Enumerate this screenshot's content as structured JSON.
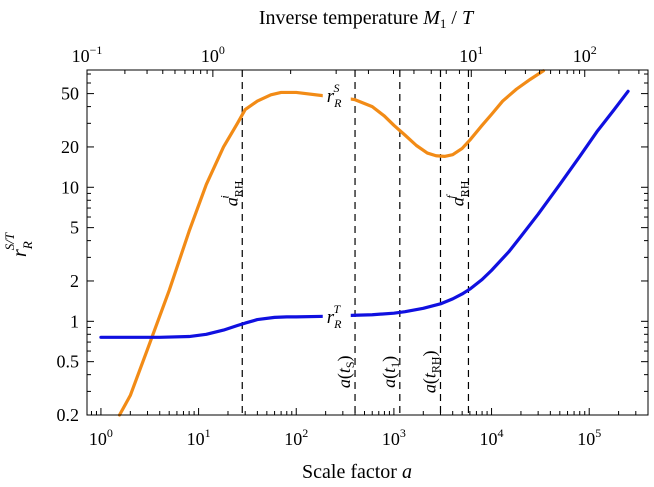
{
  "chart_data": {
    "type": "line",
    "title": "Inverse temperature M₁ / T",
    "xlabel": "Scale factor a",
    "ylabel": "r_R^{S/T}",
    "xscale": "log",
    "yscale": "log",
    "xlim": [
      0.72,
      400000
    ],
    "ylim": [
      0.2,
      75
    ],
    "x_ticks": [
      {
        "value": 1,
        "base": "10",
        "exp": "0"
      },
      {
        "value": 10,
        "base": "10",
        "exp": "1"
      },
      {
        "value": 100,
        "base": "10",
        "exp": "2"
      },
      {
        "value": 1000,
        "base": "10",
        "exp": "3"
      },
      {
        "value": 10000,
        "base": "10",
        "exp": "4"
      },
      {
        "value": 100000,
        "base": "10",
        "exp": "5"
      }
    ],
    "top_ticks": [
      {
        "a_value": 0.72,
        "base": "10",
        "exp": "−1"
      },
      {
        "a_value": 14,
        "base": "10",
        "exp": "0"
      },
      {
        "a_value": 6200,
        "base": "10",
        "exp": "1"
      },
      {
        "a_value": 90000,
        "base": "10",
        "exp": "2"
      }
    ],
    "y_ticks": [
      {
        "value": 0.2,
        "label": "0.2"
      },
      {
        "value": 0.5,
        "label": "0.5"
      },
      {
        "value": 1,
        "label": "1"
      },
      {
        "value": 2,
        "label": "2"
      },
      {
        "value": 5,
        "label": "5"
      },
      {
        "value": 10,
        "label": "10"
      },
      {
        "value": 20,
        "label": "20"
      },
      {
        "value": 50,
        "label": "50"
      }
    ],
    "series": [
      {
        "name": "r_R^S",
        "color": "#f28b16",
        "x": [
          1.55,
          2,
          3,
          5,
          8,
          12,
          18,
          25,
          30,
          40,
          55,
          70,
          100,
          200,
          300,
          400,
          600,
          800,
          1000,
          1300,
          1700,
          2200,
          2700,
          3300,
          4000,
          5000,
          6000,
          8000,
          10000,
          13000,
          18000,
          25000,
          34000
        ],
        "values": [
          0.2,
          0.28,
          0.62,
          1.7,
          4.7,
          10.5,
          20,
          30,
          38,
          44,
          49,
          51,
          51,
          48,
          46.5,
          45,
          40,
          34,
          29,
          24.5,
          20.5,
          18,
          17.2,
          17,
          17.5,
          19.5,
          22.5,
          29,
          35,
          44,
          54,
          64,
          74
        ]
      },
      {
        "name": "r_R^T",
        "color": "#1010e0",
        "x": [
          1,
          2,
          4,
          8,
          12,
          18,
          25,
          30,
          40,
          60,
          80,
          100,
          200,
          300,
          400,
          600,
          1000,
          1300,
          2000,
          3000,
          4000,
          5000,
          6000,
          8000,
          10000,
          15000,
          20000,
          30000,
          50000,
          80000,
          120000,
          180000,
          250000
        ],
        "values": [
          0.76,
          0.76,
          0.76,
          0.77,
          0.8,
          0.86,
          0.93,
          0.97,
          1.03,
          1.07,
          1.08,
          1.08,
          1.09,
          1.1,
          1.11,
          1.12,
          1.15,
          1.18,
          1.25,
          1.35,
          1.47,
          1.6,
          1.74,
          2.05,
          2.4,
          3.3,
          4.3,
          6.3,
          10.5,
          17,
          26,
          38,
          52
        ]
      }
    ],
    "curve_labels": [
      {
        "text": "r",
        "sub": "R",
        "sup": "S",
        "a": 170,
        "r": 48
      },
      {
        "text": "r",
        "sub": "R",
        "sup": "T",
        "a": 170,
        "r": 1.08
      }
    ],
    "vlines": [
      {
        "a": 28,
        "label": "a",
        "sub": "RH",
        "sup": "i",
        "label_r": 9
      },
      {
        "a": 400,
        "label": "a(t",
        "sub": "S",
        "suffix": ")",
        "label_r": 0.42
      },
      {
        "a": 1150,
        "label": "a(t",
        "sub": "1",
        "suffix": ")",
        "label_r": 0.42
      },
      {
        "a": 3000,
        "label": "a(t",
        "sub": "RH",
        "suffix": ")",
        "label_r": 0.42
      },
      {
        "a": 5800,
        "label": "a",
        "sub": "RH",
        "sup": "f",
        "label_r": 9
      }
    ]
  }
}
